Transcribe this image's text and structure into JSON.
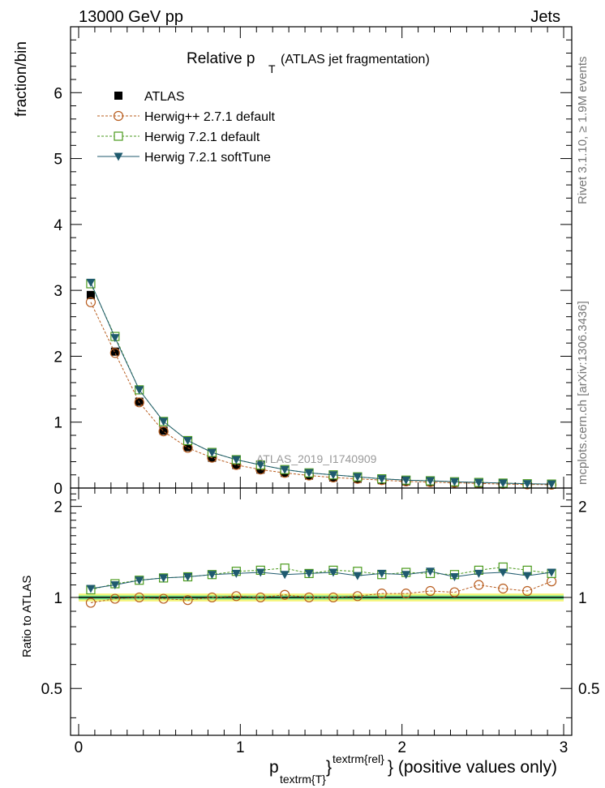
{
  "header": {
    "left": "13000 GeV pp",
    "right": "Jets"
  },
  "side_labels": {
    "rivet": "Rivet 3.1.10, ≥ 1.9M events",
    "mcplots": "mcplots.cern.ch [arXiv:1306.3436]"
  },
  "chart_data": [
    {
      "type": "line",
      "panel": "main",
      "title": "Relative p",
      "title_sub": "T",
      "title_suffix": "(ATLAS jet fragmentation)",
      "ylabel": "fraction/bin",
      "watermark": "ATLAS_2019_I1740909",
      "xlim": [
        -0.05,
        3.05
      ],
      "ylim": [
        0,
        7
      ],
      "yticks": [
        0,
        1,
        2,
        3,
        4,
        5,
        6
      ],
      "yticklabels": [
        "0",
        "1",
        "2",
        "3",
        "4",
        "5",
        "6"
      ],
      "x": [
        0.075,
        0.225,
        0.375,
        0.525,
        0.675,
        0.825,
        0.975,
        1.125,
        1.275,
        1.425,
        1.575,
        1.725,
        1.875,
        2.025,
        2.175,
        2.325,
        2.475,
        2.625,
        2.775,
        2.925
      ],
      "legend_position": "top-left",
      "series": [
        {
          "name": "ATLAS",
          "marker": "square-filled",
          "color": "#000000",
          "line": "none",
          "values": [
            2.93,
            2.07,
            1.31,
            0.87,
            0.62,
            0.46,
            0.35,
            0.28,
            0.23,
            0.19,
            0.16,
            0.14,
            0.12,
            0.1,
            0.09,
            0.08,
            0.07,
            0.06,
            0.055,
            0.05
          ]
        },
        {
          "name": "Herwig++ 2.7.1 default",
          "marker": "circle-open",
          "color": "#b85c1e",
          "line": "dashed",
          "values": [
            2.82,
            2.05,
            1.3,
            0.86,
            0.61,
            0.46,
            0.35,
            0.28,
            0.23,
            0.19,
            0.16,
            0.14,
            0.12,
            0.1,
            0.09,
            0.08,
            0.07,
            0.06,
            0.055,
            0.05
          ]
        },
        {
          "name": "Herwig 7.2.1 default",
          "marker": "square-open",
          "color": "#4a9a1c",
          "line": "dashed",
          "values": [
            3.1,
            2.3,
            1.49,
            1.01,
            0.72,
            0.54,
            0.43,
            0.35,
            0.28,
            0.23,
            0.2,
            0.17,
            0.14,
            0.12,
            0.11,
            0.095,
            0.085,
            0.075,
            0.065,
            0.06
          ]
        },
        {
          "name": "Herwig 7.2.1 softTune",
          "marker": "triangle-down-filled",
          "color": "#1f5a6e",
          "line": "solid",
          "values": [
            3.12,
            2.28,
            1.49,
            1.01,
            0.72,
            0.54,
            0.43,
            0.35,
            0.28,
            0.23,
            0.2,
            0.17,
            0.14,
            0.12,
            0.11,
            0.095,
            0.085,
            0.075,
            0.065,
            0.06
          ]
        }
      ]
    },
    {
      "type": "line",
      "panel": "ratio",
      "ylabel": "Ratio to ATLAS",
      "xlabel_main": "p",
      "xlabel_sub": "textrm{T}",
      "xlabel_brace": "}",
      "xlabel_sup": "textrm{rel}",
      "xlabel_suffix": "} (positive values only)",
      "xlim": [
        -0.05,
        3.05
      ],
      "ylim": [
        0.35,
        2.3
      ],
      "yticks": [
        0.5,
        1,
        2
      ],
      "yticklabels": [
        "0.5",
        "1",
        "2"
      ],
      "xticks": [
        0,
        1,
        2,
        3
      ],
      "xticklabels": [
        "0",
        "1",
        "2",
        "3"
      ],
      "band_inner": {
        "low": 0.985,
        "high": 1.015,
        "color": "#6ee08a"
      },
      "band_outer": {
        "low": 0.97,
        "high": 1.03,
        "color": "#f5f57a"
      },
      "reference_line": 1.0,
      "x": [
        0.075,
        0.225,
        0.375,
        0.525,
        0.675,
        0.825,
        0.975,
        1.125,
        1.275,
        1.425,
        1.575,
        1.725,
        1.875,
        2.025,
        2.175,
        2.325,
        2.475,
        2.625,
        2.775,
        2.925
      ],
      "series": [
        {
          "name": "Herwig++ 2.7.1 default",
          "marker": "circle-open",
          "color": "#b85c1e",
          "line": "dashed",
          "values": [
            0.96,
            0.99,
            1.0,
            0.99,
            0.98,
            1.0,
            1.01,
            1.0,
            1.02,
            1.0,
            1.0,
            1.01,
            1.03,
            1.03,
            1.05,
            1.04,
            1.1,
            1.07,
            1.05,
            1.13
          ]
        },
        {
          "name": "Herwig 7.2.1 default",
          "marker": "square-open",
          "color": "#4a9a1c",
          "line": "dashed",
          "values": [
            1.06,
            1.11,
            1.14,
            1.16,
            1.17,
            1.19,
            1.22,
            1.23,
            1.25,
            1.2,
            1.23,
            1.22,
            1.19,
            1.21,
            1.2,
            1.19,
            1.23,
            1.26,
            1.23,
            1.2
          ]
        },
        {
          "name": "Herwig 7.2.1 softTune",
          "marker": "triangle-down-filled",
          "color": "#1f5a6e",
          "line": "solid",
          "values": [
            1.07,
            1.1,
            1.14,
            1.16,
            1.17,
            1.19,
            1.2,
            1.21,
            1.19,
            1.2,
            1.21,
            1.18,
            1.2,
            1.19,
            1.22,
            1.17,
            1.2,
            1.21,
            1.18,
            1.21
          ]
        }
      ]
    }
  ]
}
